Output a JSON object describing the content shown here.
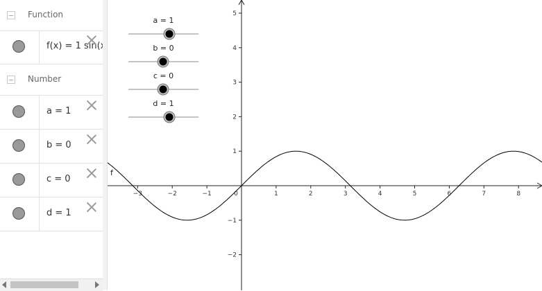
{
  "algebra": {
    "groups": [
      {
        "label": "Function",
        "items": [
          {
            "text": "f(x) = 1 sin(x"
          }
        ]
      },
      {
        "label": "Number",
        "items": [
          {
            "text": "a = 1"
          },
          {
            "text": "b = 0"
          },
          {
            "text": "c = 0"
          },
          {
            "text": "d = 1"
          }
        ]
      }
    ]
  },
  "sliders": [
    {
      "label": "a = 1",
      "value": 1
    },
    {
      "label": "b = 0",
      "value": 0
    },
    {
      "label": "c = 0",
      "value": 0
    },
    {
      "label": "d = 1",
      "value": 1
    }
  ],
  "graph": {
    "function_label": "f",
    "x_ticks": [
      "−3",
      "−2",
      "−1",
      "1",
      "2",
      "3",
      "4",
      "5",
      "6",
      "7",
      "8"
    ],
    "y_ticks": [
      "5",
      "4",
      "3",
      "2",
      "1",
      "−1",
      "−2"
    ],
    "origin_label": "0",
    "function": {
      "a": 1,
      "b": 0,
      "c": 0,
      "d": 1,
      "type": "sin"
    },
    "x_range": [
      -3.7,
      8.6
    ],
    "y_range": [
      -3,
      5.3
    ]
  }
}
